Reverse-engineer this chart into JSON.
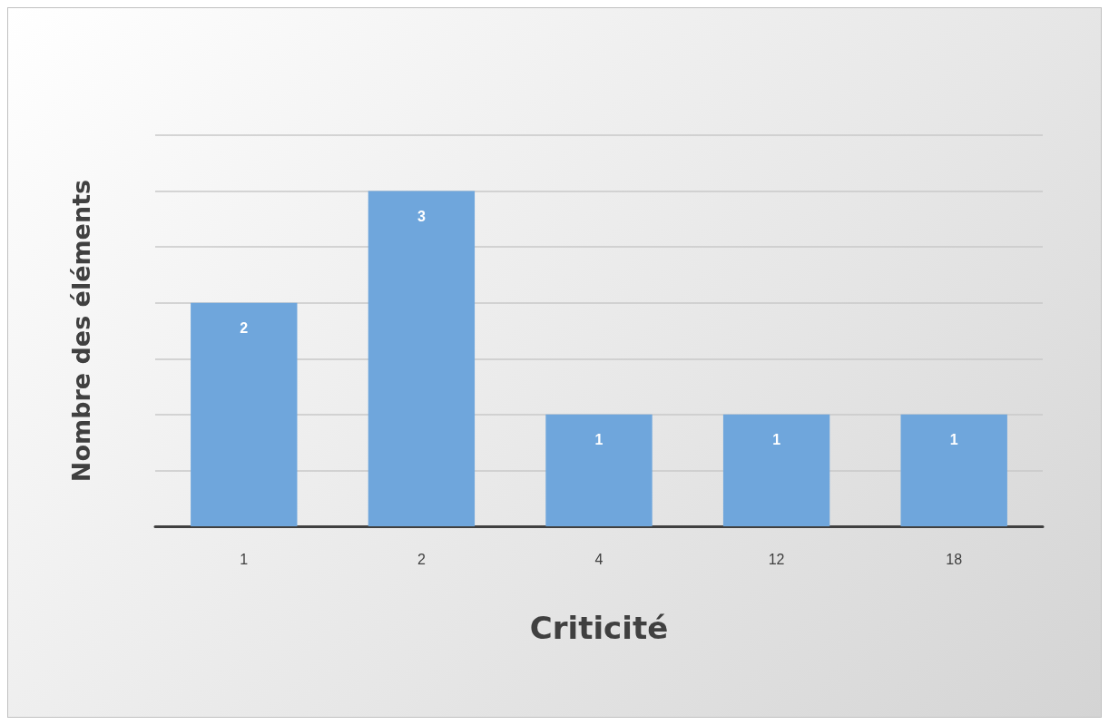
{
  "chart_data": {
    "type": "bar",
    "xlabel": "Criticité",
    "ylabel": "Nombre des éléments",
    "categories": [
      "1",
      "2",
      "4",
      "12",
      "18"
    ],
    "values": [
      2,
      3,
      1,
      1,
      1
    ],
    "color": "#6fa6dc",
    "ylim": [
      0,
      3.5
    ],
    "yticks": [
      {
        "value": 0,
        "label": null
      },
      {
        "value": 0.5,
        "label": null
      },
      {
        "value": 1,
        "label": null
      },
      {
        "value": 1.5,
        "label": null
      },
      {
        "value": 2,
        "label": null
      },
      {
        "value": 2.5,
        "label": null
      },
      {
        "value": 3,
        "label": null
      },
      {
        "value": 3.5,
        "label": null
      }
    ],
    "grid": "y",
    "data_labels": true,
    "tick_labels": "x"
  }
}
